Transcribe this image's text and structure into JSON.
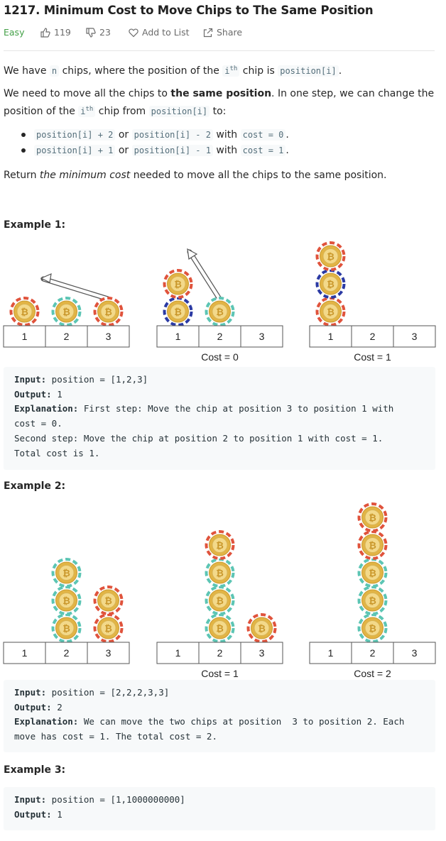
{
  "problem": {
    "title": "1217. Minimum Cost to Move Chips to The Same Position",
    "difficulty": "Easy",
    "likes": "119",
    "dislikes": "23",
    "add_to_list": "Add to List",
    "share": "Share"
  },
  "description": {
    "p1": {
      "a": "We have ",
      "n": "n",
      "b": " chips, where the position of the ",
      "i": "i",
      "th": "th",
      "c": " chip is ",
      "pos": "position[i]",
      "d": "."
    },
    "p2": {
      "a": "We need to move all the chips to ",
      "bold": "the same position",
      "b": ". In one step, we can change the position of the ",
      "i": "i",
      "th": "th",
      "c": " chip from ",
      "pos": "position[i]",
      "d": " to:"
    },
    "rules": [
      {
        "c1": "position[i] + 2",
        "or": " or ",
        "c2": "position[i] - 2",
        "with": " with ",
        "c3": "cost = 0",
        "end": "."
      },
      {
        "c1": "position[i] + 1",
        "or": " or ",
        "c2": "position[i] - 1",
        "with": " with ",
        "c3": "cost = 1",
        "end": "."
      }
    ],
    "p3": {
      "a": "Return ",
      "em": "the minimum cost",
      "b": " needed to move all the chips to the same position."
    }
  },
  "examples": [
    {
      "heading": "Example 1:",
      "figure": {
        "cell_labels": [
          "1",
          "2",
          "3"
        ],
        "panels": [
          {
            "stacks": [
              [
                1
              ],
              [
                1
              ],
              [
                1
              ]
            ],
            "cost_label": ""
          },
          {
            "stacks": [
              [
                2,
                1
              ],
              [
                1
              ],
              []
            ],
            "cost_label": "Cost = 0"
          },
          {
            "stacks": [
              [
                1,
                2,
                1
              ],
              [],
              []
            ],
            "cost_label": "Cost = 1"
          }
        ]
      },
      "input_label": "Input:",
      "input": " position = [1,2,3]",
      "output_label": "Output:",
      "output": " 1",
      "explanation_label": "Explanation:",
      "explanation_lines": [
        " First step: Move the chip at position 3 to position 1 with",
        "cost = 0.",
        "Second step: Move the chip at position 2 to position 1 with cost = 1.",
        "Total cost is 1."
      ]
    },
    {
      "heading": "Example 2:",
      "figure": {
        "cell_labels": [
          "1",
          "2",
          "3"
        ],
        "panels": [
          {
            "stacks": [
              [],
              [
                1,
                1,
                1
              ],
              [
                1,
                1
              ]
            ],
            "cost_label": ""
          },
          {
            "stacks": [
              [],
              [
                1,
                1,
                1,
                1
              ],
              [
                1
              ]
            ],
            "cost_label": "Cost = 1"
          },
          {
            "stacks": [
              [],
              [
                1,
                1,
                1,
                1,
                1
              ],
              []
            ],
            "cost_label": "Cost = 2"
          }
        ]
      },
      "input_label": "Input:",
      "input": " position = [2,2,2,3,3]",
      "output_label": "Output:",
      "output": " 2",
      "explanation_label": "Explanation:",
      "explanation_lines": [
        " We can move the two chips at position  3 to position 2. Each",
        "move has cost = 1. The total cost = 2."
      ]
    },
    {
      "heading": "Example 3:",
      "input_label": "Input:",
      "input": " position = [1,1000000000]",
      "output_label": "Output:",
      "output": " 1"
    }
  ],
  "colors": {
    "easy": "#43a047",
    "chip_red": "#e0533c",
    "chip_teal": "#5cc5b4",
    "chip_blue": "#2b3aa3",
    "chip_gold": "#e2b445"
  }
}
